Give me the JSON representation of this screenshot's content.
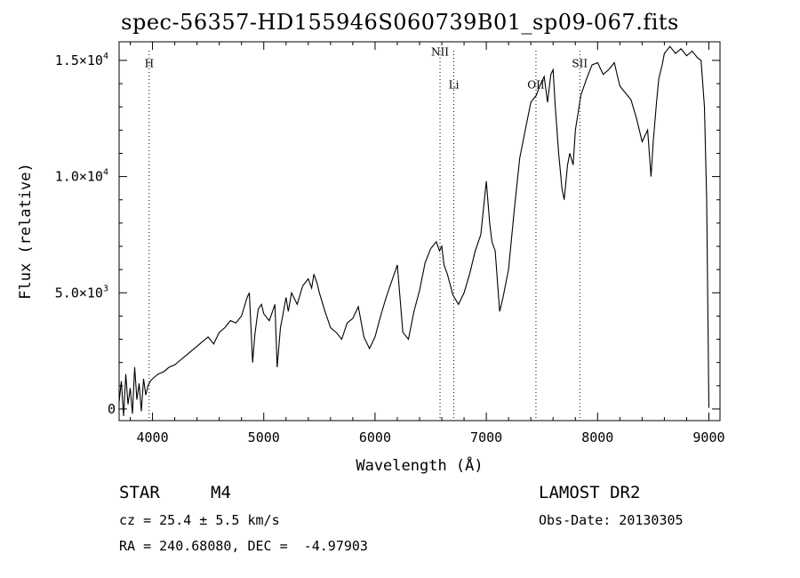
{
  "title": "spec-56357-HD155946S060739B01_sp09-067.fits",
  "info": {
    "object_class": "STAR",
    "subclass": "M4",
    "survey": "LAMOST DR2",
    "cz": "cz = 25.4 ± 5.5 km/s",
    "obs_date": "Obs-Date: 20130305",
    "coords": "RA = 240.68080, DEC =  -4.97903"
  },
  "chart_data": {
    "type": "line",
    "title": "spec-56357-HD155946S060739B01_sp09-067.fits",
    "xlabel": "Wavelength (Å)",
    "ylabel": "Flux (relative)",
    "xlim": [
      3700,
      9100
    ],
    "ylim": [
      -500,
      15800
    ],
    "xticks": [
      4000,
      5000,
      6000,
      7000,
      8000,
      9000
    ],
    "yticks": [
      {
        "value": 0,
        "label": "0"
      },
      {
        "value": 5000,
        "label": "5.0×10",
        "exp": "3"
      },
      {
        "value": 10000,
        "label": "1.0×10",
        "exp": "4"
      },
      {
        "value": 15000,
        "label": "1.5×10",
        "exp": "4"
      }
    ],
    "lines": [
      {
        "name": "H",
        "x": 3970,
        "label_y": 14700
      },
      {
        "name": "NII",
        "x": 6584,
        "label_y": 15200
      },
      {
        "name": "Li",
        "x": 6708,
        "label_y": 13800
      },
      {
        "name": "OII",
        "x": 7446,
        "label_y": 13800
      },
      {
        "name": "SII",
        "x": 7840,
        "label_y": 14700
      }
    ],
    "series": [
      {
        "x": [
          3700,
          3720,
          3740,
          3760,
          3780,
          3800,
          3820,
          3840,
          3860,
          3880,
          3900,
          3920,
          3940,
          3960,
          3980,
          4000,
          4050,
          4100,
          4150,
          4200,
          4250,
          4300,
          4350,
          4400,
          4450,
          4500,
          4550,
          4600,
          4650,
          4700,
          4750,
          4800,
          4850,
          4870,
          4900,
          4920,
          4950,
          4980,
          5000,
          5050,
          5100,
          5120,
          5150,
          5170,
          5200,
          5220,
          5250,
          5300,
          5350,
          5400,
          5430,
          5450,
          5480,
          5500,
          5550,
          5600,
          5650,
          5700,
          5750,
          5800,
          5850,
          5900,
          5950,
          6000,
          6050,
          6100,
          6150,
          6200,
          6250,
          6300,
          6350,
          6400,
          6450,
          6500,
          6550,
          6580,
          6600,
          6620,
          6650,
          6700,
          6750,
          6800,
          6850,
          6900,
          6950,
          7000,
          7030,
          7050,
          7080,
          7100,
          7120,
          7150,
          7200,
          7250,
          7300,
          7350,
          7400,
          7450,
          7480,
          7500,
          7520,
          7550,
          7580,
          7600,
          7620,
          7650,
          7680,
          7700,
          7730,
          7750,
          7780,
          7800,
          7850,
          7900,
          7950,
          8000,
          8050,
          8100,
          8150,
          8200,
          8250,
          8300,
          8350,
          8400,
          8450,
          8480,
          8500,
          8530,
          8550,
          8580,
          8600,
          8650,
          8700,
          8750,
          8800,
          8850,
          8900,
          8930,
          8960,
          8980,
          9000
        ],
        "y": [
          300,
          1200,
          -300,
          1500,
          200,
          900,
          -200,
          1800,
          400,
          1100,
          -100,
          1300,
          600,
          1000,
          1200,
          1300,
          1500,
          1600,
          1800,
          1900,
          2100,
          2300,
          2500,
          2700,
          2900,
          3100,
          2800,
          3300,
          3500,
          3800,
          3700,
          4000,
          4800,
          5000,
          2000,
          3200,
          4300,
          4500,
          4100,
          3800,
          4500,
          1800,
          3500,
          4000,
          4800,
          4200,
          5000,
          4500,
          5300,
          5600,
          5200,
          5800,
          5400,
          5000,
          4200,
          3500,
          3300,
          3000,
          3700,
          3900,
          4400,
          3100,
          2600,
          3100,
          4000,
          4800,
          5500,
          6200,
          3300,
          3000,
          4200,
          5100,
          6300,
          6900,
          7200,
          6800,
          7000,
          6200,
          5800,
          4900,
          4500,
          5000,
          5800,
          6800,
          7500,
          9800,
          8000,
          7200,
          6800,
          5500,
          4200,
          4800,
          6000,
          8500,
          10800,
          12000,
          13200,
          13500,
          13900,
          14100,
          14300,
          13200,
          14400,
          14600,
          13000,
          11000,
          9500,
          9000,
          10500,
          11000,
          10500,
          12000,
          13500,
          14200,
          14800,
          14900,
          14400,
          14600,
          14900,
          13900,
          13600,
          13300,
          12500,
          11500,
          12000,
          10000,
          11500,
          13200,
          14200,
          14800,
          15300,
          15600,
          15300,
          15500,
          15200,
          15400,
          15100,
          15000,
          13000,
          9000,
          50
        ]
      }
    ]
  }
}
